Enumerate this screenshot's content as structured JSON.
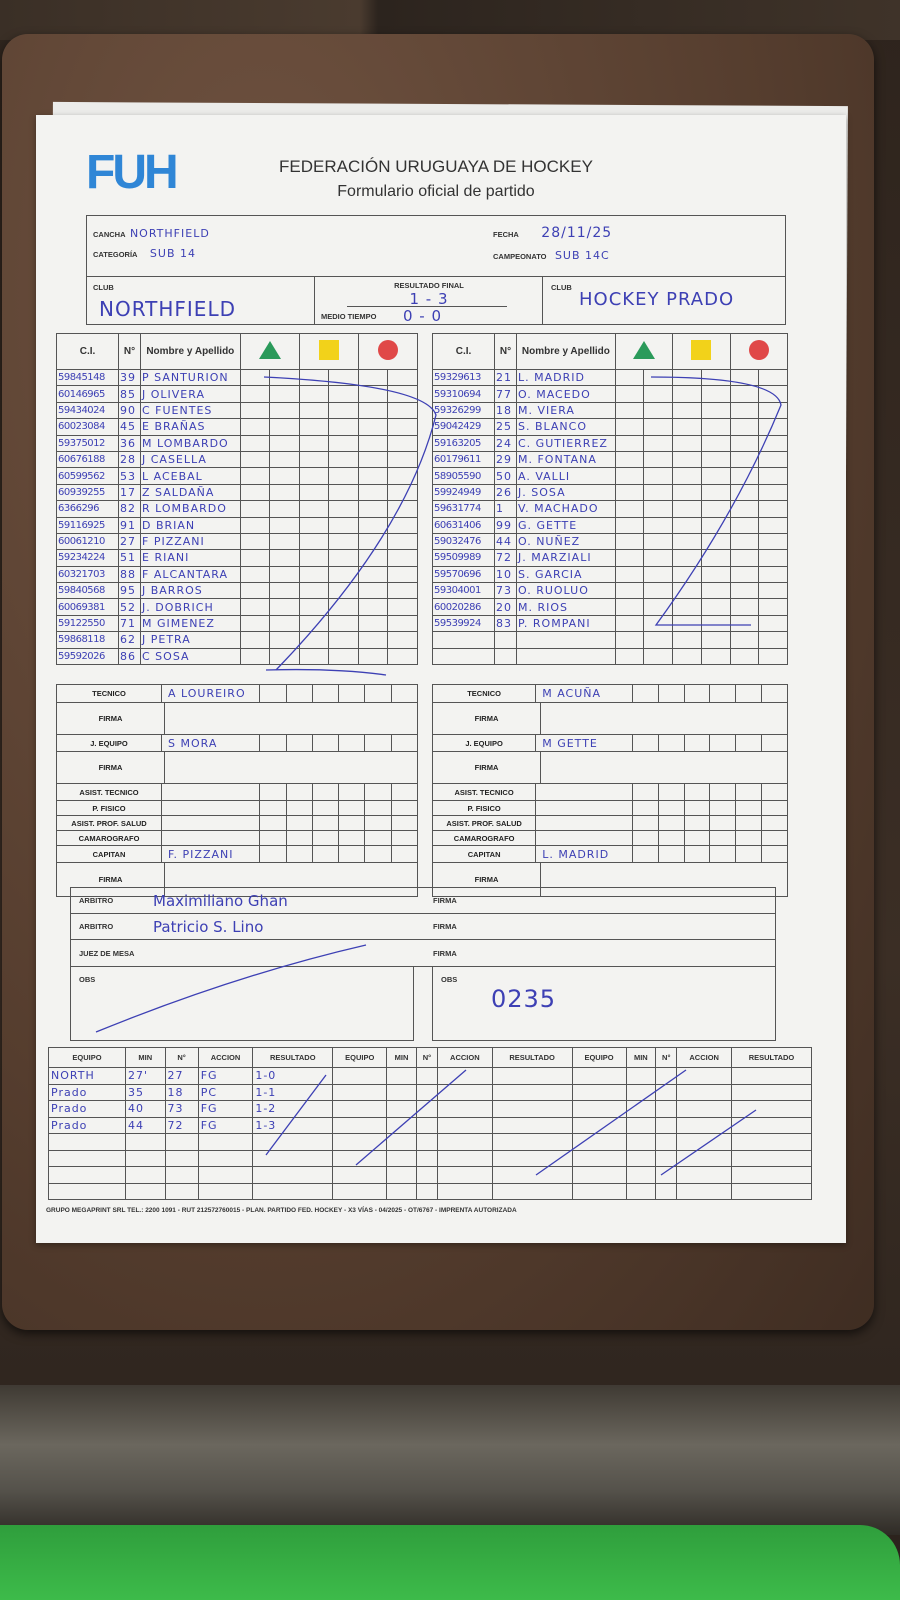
{
  "header": {
    "logo": "FUH",
    "title": "FEDERACIÓN URUGUAYA DE HOCKEY",
    "subtitle": "Formulario oficial de partido"
  },
  "info": {
    "cancha_label": "CANCHA",
    "cancha": "NORTHFIELD",
    "categoria_label": "CATEGORÍA",
    "categoria": "SUB 14",
    "fecha_label": "FECHA",
    "fecha": "28/11/25",
    "campeonato_label": "CAMPEONATO",
    "campeonato": "SUB 14C",
    "club_label": "CLUB",
    "home_club": "NORTHFIELD",
    "away_club": "HOCKEY PRADO",
    "resultado_label": "RESULTADO FINAL",
    "resultado": "1 - 3",
    "medio_label": "MEDIO TIEMPO",
    "medio": "0 - 0"
  },
  "columns": {
    "ci": "C.I.",
    "num": "N°",
    "name": "Nombre y Apellido"
  },
  "card_colors": {
    "green": "#2a9a5a",
    "yellow": "#f2d21a",
    "red": "#e04848"
  },
  "staff_labels": [
    "TECNICO",
    "FIRMA",
    "J. EQUIPO",
    "FIRMA",
    "ASIST. TECNICO",
    "P. FISICO",
    "ASIST. PROF. SALUD",
    "CAMAROGRAFO",
    "CAPITAN",
    "FIRMA"
  ],
  "home": {
    "players": [
      [
        "59845148",
        "39",
        "P SANTURION"
      ],
      [
        "60146965",
        "85",
        "J OLIVERA"
      ],
      [
        "59434024",
        "90",
        "C FUENTES"
      ],
      [
        "60023084",
        "45",
        "E BRAÑAS"
      ],
      [
        "59375012",
        "36",
        "M LOMBARDO"
      ],
      [
        "60676188",
        "28",
        "J CASELLA"
      ],
      [
        "60599562",
        "53",
        "L ACEBAL"
      ],
      [
        "60939255",
        "17",
        "Z SALDAÑA"
      ],
      [
        "6366296",
        "82",
        "R LOMBARDO"
      ],
      [
        "59116925",
        "91",
        "D BRIAN"
      ],
      [
        "60061210",
        "27",
        "F PIZZANI"
      ],
      [
        "59234224",
        "51",
        "E RIANI"
      ],
      [
        "60321703",
        "88",
        "F ALCANTARA"
      ],
      [
        "59840568",
        "95",
        "J BARROS"
      ],
      [
        "60069381",
        "52",
        "J. DOBRICH"
      ],
      [
        "59122550",
        "71",
        "M GIMENEZ"
      ],
      [
        "59868118",
        "62",
        "J PETRA"
      ],
      [
        "59592026",
        "86",
        "C SOSA"
      ]
    ],
    "staff": [
      "A LOUREIRO",
      "",
      "S MORA",
      "",
      "",
      "",
      "",
      "",
      "F. PIZZANI",
      ""
    ]
  },
  "away": {
    "players": [
      [
        "59329613",
        "21",
        "L. MADRID"
      ],
      [
        "59310694",
        "77",
        "O. MACEDO"
      ],
      [
        "59326299",
        "18",
        "M. VIERA"
      ],
      [
        "59042429",
        "25",
        "S. BLANCO"
      ],
      [
        "59163205",
        "24",
        "C. GUTIERREZ"
      ],
      [
        "60179611",
        "29",
        "M. FONTANA"
      ],
      [
        "58905590",
        "50",
        "A. VALLI"
      ],
      [
        "59924949",
        "26",
        "J. SOSA"
      ],
      [
        "59631774",
        "1",
        "V. MACHADO"
      ],
      [
        "60631406",
        "99",
        "G. GETTE"
      ],
      [
        "59032476",
        "44",
        "O. NUÑEZ"
      ],
      [
        "59509989",
        "72",
        "J. MARZIALI"
      ],
      [
        "59570696",
        "10",
        "S. GARCIA"
      ],
      [
        "59304001",
        "73",
        "O. RUOLUO"
      ],
      [
        "60020286",
        "20",
        "M. RIOS"
      ],
      [
        "59539924",
        "83",
        "P. ROMPANI"
      ],
      [
        "",
        "",
        ""
      ],
      [
        "",
        "",
        ""
      ]
    ],
    "staff": [
      "M ACUÑA",
      "",
      "M GETTE",
      "",
      "",
      "",
      "",
      "",
      "L. MADRID",
      ""
    ]
  },
  "officials": {
    "rows": [
      {
        "label": "ARBITRO",
        "value": "Maximiliano Ghan"
      },
      {
        "label": "ARBITRO",
        "value": "Patricio S. Lino"
      },
      {
        "label": "JUEZ DE MESA",
        "value": ""
      }
    ],
    "firma_label": "FIRMA",
    "obs_label": "OBS",
    "obs_right": "0235"
  },
  "events": {
    "headers": [
      "EQUIPO",
      "MIN",
      "N°",
      "ACCION",
      "RESULTADO"
    ],
    "rows": [
      [
        "NORTH",
        "27'",
        "27",
        "FG",
        "1-0"
      ],
      [
        "Prado",
        "35",
        "18",
        "PC",
        "1-1"
      ],
      [
        "Prado",
        "40",
        "73",
        "FG",
        "1-2"
      ],
      [
        "Prado",
        "44",
        "72",
        "FG",
        "1-3"
      ]
    ]
  },
  "footer": "GRUPO MEGAPRINT SRL TEL.: 2200 1091 - RUT 212572760015 - PLAN. PARTIDO FED. HOCKEY - X3 VÍAS - 04/2025 - OT/6767 - IMPRENTA AUTORIZADA"
}
